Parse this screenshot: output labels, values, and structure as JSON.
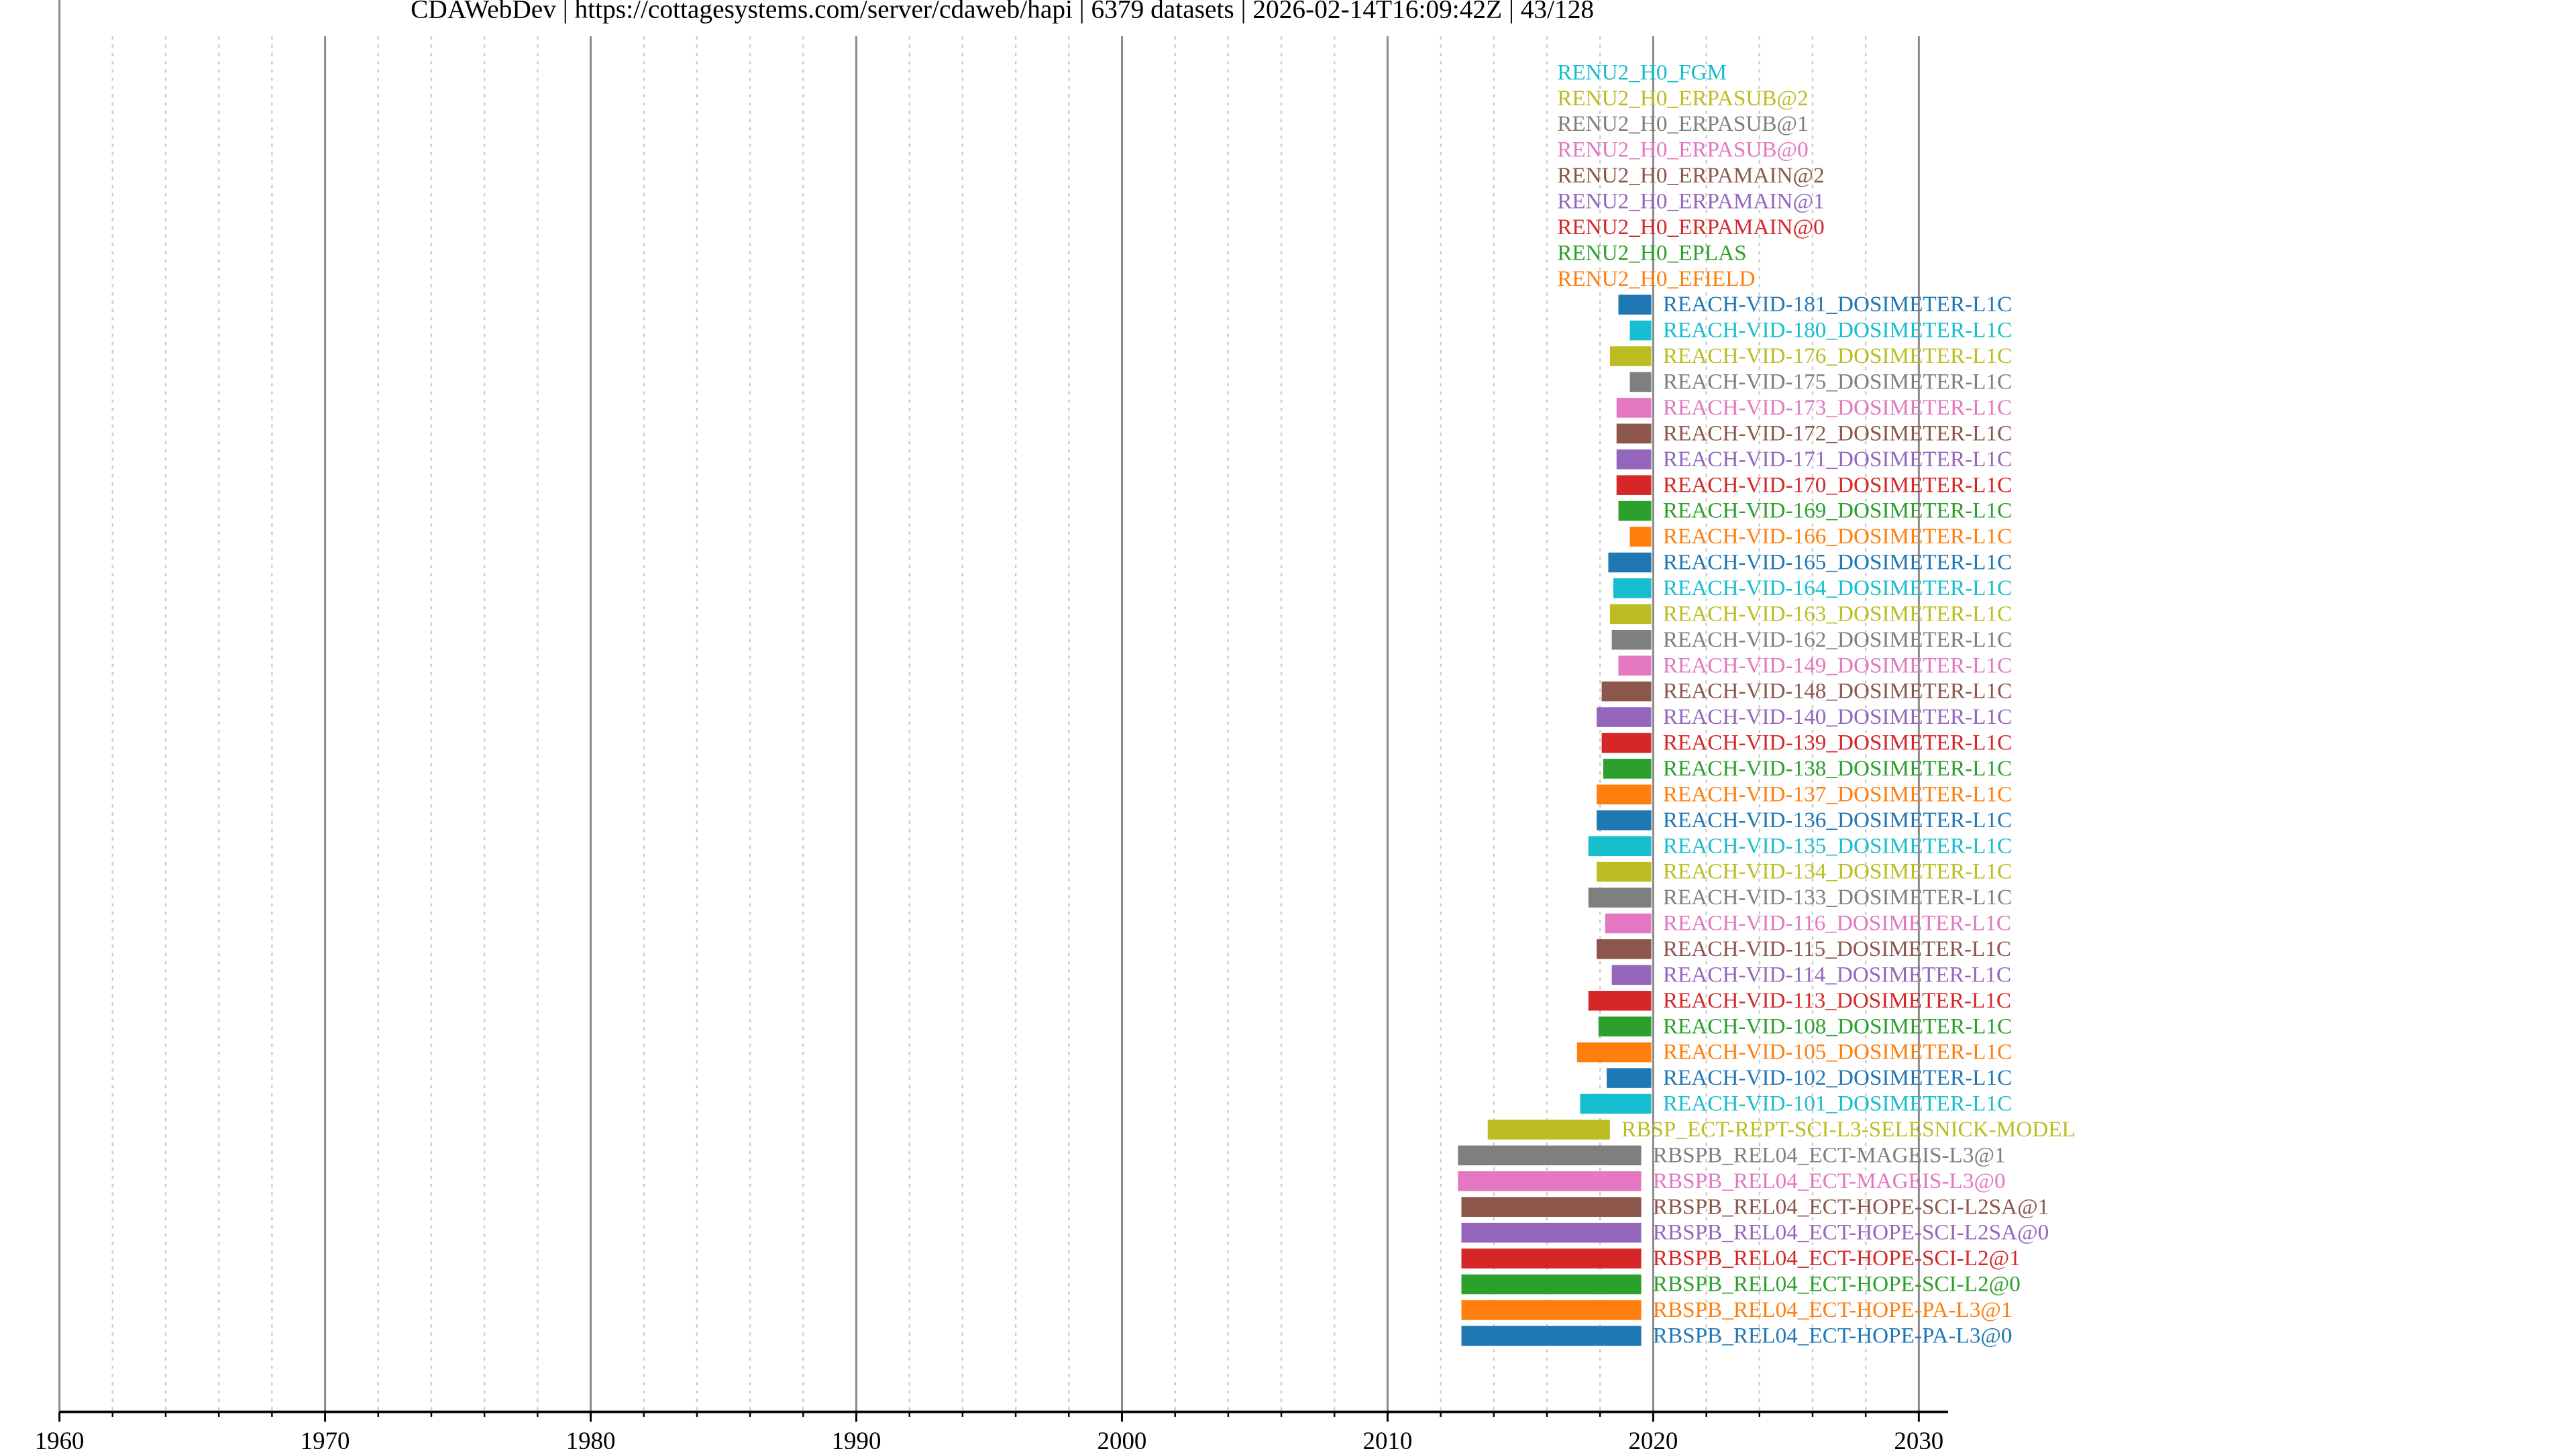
{
  "chart_data": {
    "type": "timeline",
    "title": "CDAWebDev | https://cottagesystems.com/server/cdaweb/hapi | 6379 datasets | 2026-02-14T16:09:42Z | 43/128",
    "categories": [
      "RENU2_H0_FGM",
      "RENU2_H0_ERPASUB@2",
      "RENU2_H0_ERPASUB@1",
      "RENU2_H0_ERPASUB@0",
      "RENU2_H0_ERPAMAIN@2",
      "RENU2_H0_ERPAMAIN@1",
      "RENU2_H0_ERPAMAIN@0",
      "RENU2_H0_EPLAS",
      "RENU2_H0_EFIELD",
      "REACH-VID-181_DOSIMETER-L1C",
      "REACH-VID-180_DOSIMETER-L1C",
      "REACH-VID-176_DOSIMETER-L1C",
      "REACH-VID-175_DOSIMETER-L1C",
      "REACH-VID-173_DOSIMETER-L1C",
      "REACH-VID-172_DOSIMETER-L1C",
      "REACH-VID-171_DOSIMETER-L1C",
      "REACH-VID-170_DOSIMETER-L1C",
      "REACH-VID-169_DOSIMETER-L1C",
      "REACH-VID-166_DOSIMETER-L1C",
      "REACH-VID-165_DOSIMETER-L1C",
      "REACH-VID-164_DOSIMETER-L1C",
      "REACH-VID-163_DOSIMETER-L1C",
      "REACH-VID-162_DOSIMETER-L1C",
      "REACH-VID-149_DOSIMETER-L1C",
      "REACH-VID-148_DOSIMETER-L1C",
      "REACH-VID-140_DOSIMETER-L1C",
      "REACH-VID-139_DOSIMETER-L1C",
      "REACH-VID-138_DOSIMETER-L1C",
      "REACH-VID-137_DOSIMETER-L1C",
      "REACH-VID-136_DOSIMETER-L1C",
      "REACH-VID-135_DOSIMETER-L1C",
      "REACH-VID-134_DOSIMETER-L1C",
      "REACH-VID-133_DOSIMETER-L1C",
      "REACH-VID-116_DOSIMETER-L1C",
      "REACH-VID-115_DOSIMETER-L1C",
      "REACH-VID-114_DOSIMETER-L1C",
      "REACH-VID-113_DOSIMETER-L1C",
      "REACH-VID-108_DOSIMETER-L1C",
      "REACH-VID-105_DOSIMETER-L1C",
      "REACH-VID-102_DOSIMETER-L1C",
      "REACH-VID-101_DOSIMETER-L1C",
      "RBSP_ECT-REPT-SCI-L3-SELESNICK-MODEL",
      "RBSPB_REL04_ECT-MAGEIS-L3@1",
      "RBSPB_REL04_ECT-MAGEIS-L3@0",
      "RBSPB_REL04_ECT-HOPE-SCI-L2SA@1",
      "RBSPB_REL04_ECT-HOPE-SCI-L2SA@0",
      "RBSPB_REL04_ECT-HOPE-SCI-L2@1",
      "RBSPB_REL04_ECT-HOPE-SCI-L2@0",
      "RBSPB_REL04_ECT-HOPE-PA-L3@1",
      "RBSPB_REL04_ECT-HOPE-PA-L3@0"
    ],
    "start": [
      null,
      null,
      null,
      null,
      null,
      null,
      null,
      null,
      null,
      2018.69,
      2019.12,
      2018.37,
      2019.12,
      2018.62,
      2018.62,
      2018.62,
      2018.62,
      2018.69,
      2019.12,
      2018.31,
      2018.5,
      2018.37,
      2018.44,
      2018.69,
      2018.06,
      2017.87,
      2018.06,
      2018.12,
      2017.87,
      2017.87,
      2017.56,
      2017.87,
      2017.56,
      2018.19,
      2017.87,
      2018.44,
      2017.56,
      2017.94,
      2017.13,
      2018.25,
      2017.25,
      2013.77,
      2012.65,
      2012.65,
      2012.78,
      2012.78,
      2012.78,
      2012.78,
      2012.78,
      2012.78
    ],
    "end": [
      null,
      null,
      null,
      null,
      null,
      null,
      null,
      null,
      null,
      2019.93,
      2019.93,
      2019.93,
      2019.93,
      2019.93,
      2019.93,
      2019.93,
      2019.93,
      2019.93,
      2019.93,
      2019.93,
      2019.93,
      2019.93,
      2019.93,
      2019.93,
      2019.93,
      2019.93,
      2019.93,
      2019.93,
      2019.93,
      2019.93,
      2019.93,
      2019.93,
      2019.93,
      2019.93,
      2019.93,
      2019.93,
      2019.93,
      2019.93,
      2019.93,
      2019.93,
      2019.93,
      2018.37,
      2019.55,
      2019.55,
      2019.55,
      2019.55,
      2019.55,
      2019.55,
      2019.55,
      2019.55
    ],
    "colors": [
      "#17becf",
      "#bcbd22",
      "#7f7f7f",
      "#e377c2",
      "#8c564b",
      "#9467bd",
      "#d62728",
      "#2ca02c",
      "#ff7f0e",
      "#1f77b4",
      "#17becf",
      "#bcbd22",
      "#7f7f7f",
      "#e377c2",
      "#8c564b",
      "#9467bd",
      "#d62728",
      "#2ca02c",
      "#ff7f0e",
      "#1f77b4",
      "#17becf",
      "#bcbd22",
      "#7f7f7f",
      "#e377c2",
      "#8c564b",
      "#9467bd",
      "#d62728",
      "#2ca02c",
      "#ff7f0e",
      "#1f77b4",
      "#17becf",
      "#bcbd22",
      "#7f7f7f",
      "#e377c2",
      "#8c564b",
      "#9467bd",
      "#d62728",
      "#2ca02c",
      "#ff7f0e",
      "#1f77b4",
      "#17becf",
      "#bcbd22",
      "#7f7f7f",
      "#e377c2",
      "#8c564b",
      "#9467bd",
      "#d62728",
      "#2ca02c",
      "#ff7f0e",
      "#1f77b4"
    ],
    "xlim": [
      1960,
      2031.1
    ],
    "xticks": [
      1960,
      1970,
      1980,
      1990,
      2000,
      2010,
      2020,
      2030
    ],
    "xminorticks": [
      1962,
      1964,
      1966,
      1968,
      1972,
      1974,
      1976,
      1978,
      1982,
      1984,
      1986,
      1988,
      1992,
      1994,
      1996,
      1998,
      2002,
      2004,
      2006,
      2008,
      2012,
      2014,
      2016,
      2018,
      2022,
      2024,
      2026,
      2028
    ],
    "grid": true
  }
}
